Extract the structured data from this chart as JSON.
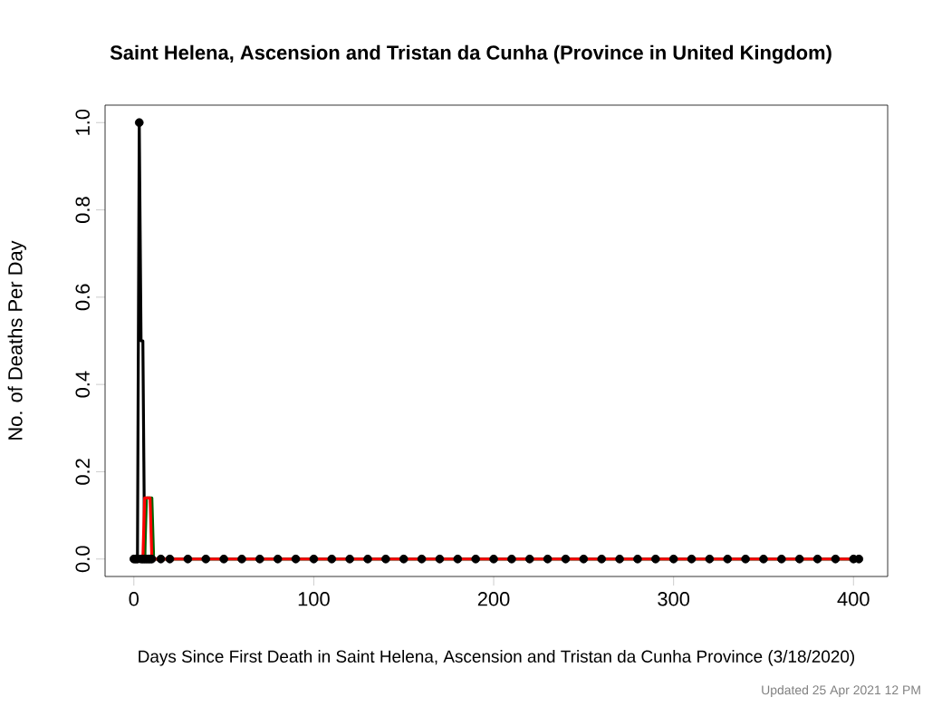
{
  "chart_data": {
    "type": "line",
    "title": "Saint Helena, Ascension and Tristan da Cunha  (Province in  United Kingdom)",
    "xlabel": "Days Since First Death in Saint Helena, Ascension and Tristan da Cunha Province (3/18/2020)",
    "ylabel": "No. of Deaths Per Day",
    "annotations": [
      "Updated  25 Apr 2021 12 PM"
    ],
    "xlim": [
      -16,
      419
    ],
    "ylim": [
      -0.04,
      1.04
    ],
    "xticks": [
      0,
      100,
      200,
      300,
      400
    ],
    "yticks": [
      {
        "value": 0,
        "label": "0.0"
      },
      {
        "value": 0.2,
        "label": "0.2"
      },
      {
        "value": 0.4,
        "label": "0.4"
      },
      {
        "value": 0.6,
        "label": "0.6"
      },
      {
        "value": 0.8,
        "label": "0.8"
      },
      {
        "value": 1,
        "label": "1.0"
      }
    ],
    "grid": false,
    "series": [
      {
        "type": "scatter",
        "color": "#000000",
        "x": [
          0,
          1,
          2,
          3,
          4,
          5,
          6,
          7,
          8,
          9,
          10,
          15,
          20,
          30,
          40,
          50,
          60,
          70,
          80,
          90,
          100,
          110,
          120,
          130,
          140,
          150,
          160,
          170,
          180,
          190,
          200,
          210,
          220,
          230,
          240,
          250,
          260,
          270,
          280,
          290,
          300,
          310,
          320,
          330,
          340,
          350,
          360,
          370,
          380,
          390,
          400,
          403
        ],
        "values": [
          0,
          0,
          0,
          1,
          0,
          0,
          0,
          0,
          0,
          0,
          0,
          0,
          0,
          0,
          0,
          0,
          0,
          0,
          0,
          0,
          0,
          0,
          0,
          0,
          0,
          0,
          0,
          0,
          0,
          0,
          0,
          0,
          0,
          0,
          0,
          0,
          0,
          0,
          0,
          0,
          0,
          0,
          0,
          0,
          0,
          0,
          0,
          0,
          0,
          0,
          0,
          0
        ]
      },
      {
        "color": "#000000",
        "x": [
          0,
          2,
          3,
          4,
          5,
          6,
          403
        ],
        "values": [
          0,
          0,
          1,
          0.5,
          0.5,
          0,
          0
        ]
      },
      {
        "color": "#006400",
        "x": [
          0,
          6,
          7,
          10,
          11,
          403
        ],
        "values": [
          0,
          0,
          0.14,
          0.14,
          0,
          0
        ]
      },
      {
        "color": "#ff0000",
        "x": [
          0,
          5,
          6,
          9,
          10,
          403
        ],
        "values": [
          0,
          0,
          0.14,
          0.14,
          0,
          0
        ]
      }
    ]
  }
}
